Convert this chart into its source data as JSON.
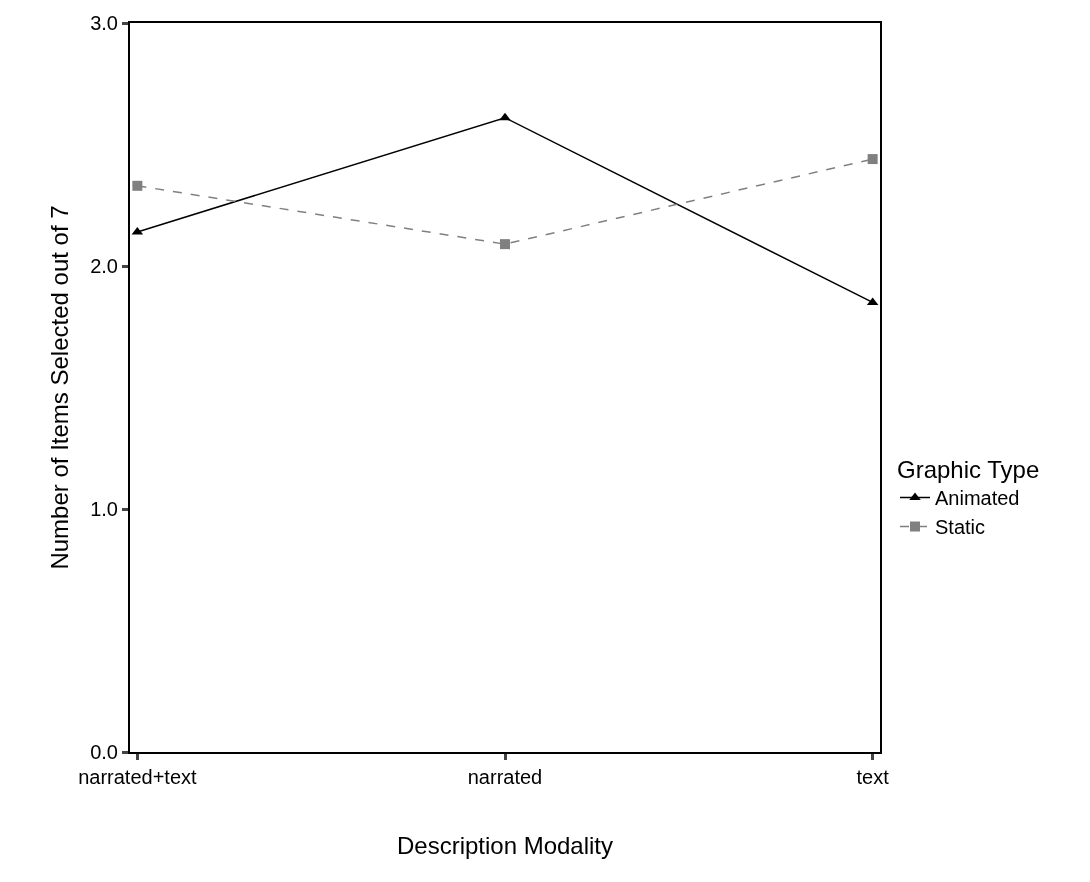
{
  "chart_data": {
    "type": "line",
    "xlabel": "Description Modality",
    "ylabel": "Number of Items Selected out of 7",
    "legend_title": "Graphic Type",
    "categories": [
      "narrated+text",
      "narrated",
      "text"
    ],
    "series": [
      {
        "name": "Animated",
        "color": "#000000",
        "values": [
          2.14,
          2.61,
          1.85
        ],
        "marker": "triangle",
        "line_style": "solid"
      },
      {
        "name": "Static",
        "color": "#808080",
        "values": [
          2.33,
          2.09,
          2.44
        ],
        "marker": "square",
        "line_style": "dashed"
      }
    ],
    "ylim": [
      0,
      3
    ],
    "yticks": [
      {
        "value": 0,
        "label": "0.0"
      },
      {
        "value": 1,
        "label": "1.0"
      },
      {
        "value": 2,
        "label": "2.0"
      },
      {
        "value": 3,
        "label": "3.0"
      }
    ],
    "legend": "right"
  }
}
